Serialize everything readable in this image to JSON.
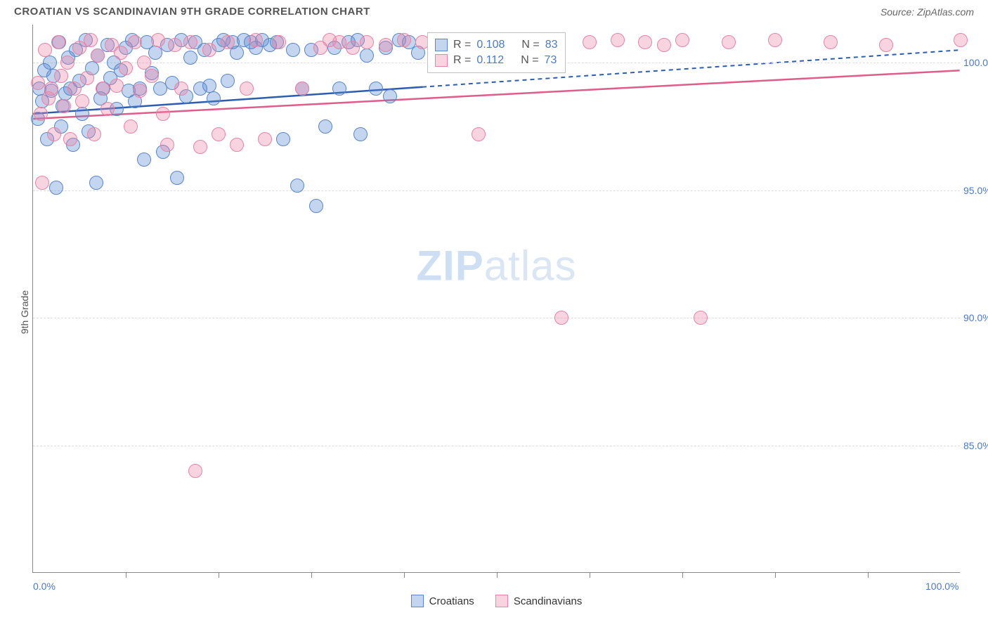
{
  "header": {
    "title": "CROATIAN VS SCANDINAVIAN 9TH GRADE CORRELATION CHART",
    "source": "Source: ZipAtlas.com"
  },
  "chart": {
    "type": "scatter",
    "ylabel": "9th Grade",
    "watermark_a": "ZIP",
    "watermark_b": "atlas",
    "background_color": "#ffffff",
    "grid_color": "#dddddd",
    "axis_color": "#888888",
    "xlim": [
      0,
      100
    ],
    "ylim": [
      80,
      101.5
    ],
    "yticks": [
      {
        "v": 100,
        "label": "100.0%"
      },
      {
        "v": 95,
        "label": "95.0%"
      },
      {
        "v": 90,
        "label": "90.0%"
      },
      {
        "v": 85,
        "label": "85.0%"
      }
    ],
    "xticks_minor": [
      10,
      20,
      30,
      40,
      50,
      60,
      70,
      80,
      90
    ],
    "xtick_labels": [
      {
        "v": 0,
        "label": "0.0%"
      },
      {
        "v": 100,
        "label": "100.0%"
      }
    ],
    "series": [
      {
        "name": "Croatians",
        "color_fill": "rgba(85,135,210,0.35)",
        "color_stroke": "#5a87c9",
        "trend_color": "#2b5db0",
        "marker_radius": 10,
        "r_value": "0.108",
        "n_value": "83",
        "trend": {
          "y_at_x0": 98.0,
          "y_at_x100": 100.5,
          "solid_until_x": 42
        },
        "points": [
          [
            0.5,
            97.8
          ],
          [
            0.7,
            99.0
          ],
          [
            1.0,
            98.5
          ],
          [
            1.2,
            99.7
          ],
          [
            1.5,
            97.0
          ],
          [
            1.8,
            100.0
          ],
          [
            2.0,
            98.9
          ],
          [
            2.2,
            99.5
          ],
          [
            2.5,
            95.1
          ],
          [
            2.8,
            100.8
          ],
          [
            3.0,
            97.5
          ],
          [
            3.2,
            98.3
          ],
          [
            3.5,
            98.8
          ],
          [
            3.8,
            100.2
          ],
          [
            4.0,
            99.0
          ],
          [
            4.3,
            96.8
          ],
          [
            4.6,
            100.5
          ],
          [
            5.0,
            99.3
          ],
          [
            5.3,
            98.0
          ],
          [
            5.7,
            100.9
          ],
          [
            6.0,
            97.3
          ],
          [
            6.4,
            99.8
          ],
          [
            6.8,
            95.3
          ],
          [
            7.0,
            100.3
          ],
          [
            7.3,
            98.6
          ],
          [
            7.6,
            99.0
          ],
          [
            8.0,
            100.7
          ],
          [
            8.3,
            99.4
          ],
          [
            8.7,
            100.0
          ],
          [
            9.0,
            98.2
          ],
          [
            9.5,
            99.7
          ],
          [
            10.0,
            100.6
          ],
          [
            10.3,
            98.9
          ],
          [
            10.7,
            100.9
          ],
          [
            11.0,
            98.5
          ],
          [
            11.5,
            99.0
          ],
          [
            12.0,
            96.2
          ],
          [
            12.3,
            100.8
          ],
          [
            12.8,
            99.6
          ],
          [
            13.2,
            100.4
          ],
          [
            13.7,
            99.0
          ],
          [
            14.0,
            96.5
          ],
          [
            14.5,
            100.7
          ],
          [
            15.0,
            99.2
          ],
          [
            15.5,
            95.5
          ],
          [
            16.0,
            100.9
          ],
          [
            16.5,
            98.7
          ],
          [
            17.0,
            100.2
          ],
          [
            17.5,
            100.8
          ],
          [
            18.0,
            99.0
          ],
          [
            18.5,
            100.5
          ],
          [
            19.0,
            99.1
          ],
          [
            19.5,
            98.6
          ],
          [
            20.0,
            100.7
          ],
          [
            20.5,
            100.9
          ],
          [
            21.0,
            99.3
          ],
          [
            21.5,
            100.8
          ],
          [
            22.0,
            100.4
          ],
          [
            22.7,
            100.9
          ],
          [
            23.5,
            100.8
          ],
          [
            24.0,
            100.6
          ],
          [
            24.7,
            100.9
          ],
          [
            25.5,
            100.7
          ],
          [
            26.3,
            100.8
          ],
          [
            27.0,
            97.0
          ],
          [
            28.0,
            100.5
          ],
          [
            28.5,
            95.2
          ],
          [
            29.0,
            99.0
          ],
          [
            30.0,
            100.5
          ],
          [
            30.5,
            94.4
          ],
          [
            31.5,
            97.5
          ],
          [
            32.5,
            100.6
          ],
          [
            33.0,
            99.0
          ],
          [
            34.0,
            100.8
          ],
          [
            35.0,
            100.9
          ],
          [
            35.3,
            97.2
          ],
          [
            36.0,
            100.3
          ],
          [
            37.0,
            99.0
          ],
          [
            38.0,
            100.6
          ],
          [
            38.5,
            98.7
          ],
          [
            39.5,
            100.9
          ],
          [
            40.5,
            100.8
          ],
          [
            41.5,
            100.4
          ]
        ]
      },
      {
        "name": "Scandinavians",
        "color_fill": "rgba(235,130,165,0.35)",
        "color_stroke": "#e884a6",
        "trend_color": "#e05c8a",
        "marker_radius": 10,
        "r_value": "0.112",
        "n_value": "73",
        "trend": {
          "y_at_x0": 97.8,
          "y_at_x100": 99.7,
          "solid_until_x": 100
        },
        "points": [
          [
            0.5,
            99.2
          ],
          [
            0.8,
            98.0
          ],
          [
            1.0,
            95.3
          ],
          [
            1.3,
            100.5
          ],
          [
            1.7,
            98.6
          ],
          [
            2.0,
            99.0
          ],
          [
            2.3,
            97.2
          ],
          [
            2.7,
            100.8
          ],
          [
            3.0,
            99.5
          ],
          [
            3.3,
            98.3
          ],
          [
            3.7,
            100.0
          ],
          [
            4.0,
            97.0
          ],
          [
            4.5,
            99.0
          ],
          [
            5.0,
            100.6
          ],
          [
            5.3,
            98.5
          ],
          [
            5.8,
            99.4
          ],
          [
            6.2,
            100.9
          ],
          [
            6.6,
            97.2
          ],
          [
            7.0,
            100.3
          ],
          [
            7.5,
            99.0
          ],
          [
            8.0,
            98.2
          ],
          [
            8.5,
            100.7
          ],
          [
            9.0,
            99.1
          ],
          [
            9.5,
            100.4
          ],
          [
            10.0,
            99.8
          ],
          [
            10.5,
            97.5
          ],
          [
            11.0,
            100.8
          ],
          [
            11.5,
            98.9
          ],
          [
            12.0,
            100.0
          ],
          [
            12.8,
            99.5
          ],
          [
            13.5,
            100.9
          ],
          [
            14.0,
            98.0
          ],
          [
            14.5,
            96.8
          ],
          [
            15.3,
            100.7
          ],
          [
            16.0,
            99.0
          ],
          [
            17.0,
            100.8
          ],
          [
            17.5,
            84.0
          ],
          [
            18.0,
            96.7
          ],
          [
            19.0,
            100.5
          ],
          [
            20.0,
            97.2
          ],
          [
            21.0,
            100.8
          ],
          [
            22.0,
            96.8
          ],
          [
            23.0,
            99.0
          ],
          [
            24.0,
            100.9
          ],
          [
            25.0,
            97.0
          ],
          [
            26.5,
            100.8
          ],
          [
            29.0,
            99.0
          ],
          [
            31.0,
            100.6
          ],
          [
            32.0,
            100.9
          ],
          [
            33.0,
            100.8
          ],
          [
            34.5,
            100.6
          ],
          [
            36.0,
            100.8
          ],
          [
            38.0,
            100.7
          ],
          [
            40.0,
            100.9
          ],
          [
            42.0,
            100.8
          ],
          [
            44.0,
            100.6
          ],
          [
            46.0,
            100.9
          ],
          [
            48.0,
            97.2
          ],
          [
            50.0,
            100.8
          ],
          [
            52.0,
            100.9
          ],
          [
            54.0,
            100.7
          ],
          [
            57.0,
            90.0
          ],
          [
            60.0,
            100.8
          ],
          [
            63.0,
            100.9
          ],
          [
            66.0,
            100.8
          ],
          [
            68.0,
            100.7
          ],
          [
            70.0,
            100.9
          ],
          [
            72.0,
            90.0
          ],
          [
            75.0,
            100.8
          ],
          [
            80.0,
            100.9
          ],
          [
            86.0,
            100.8
          ],
          [
            92.0,
            100.7
          ],
          [
            100.0,
            100.9
          ]
        ]
      }
    ],
    "stats_box": {
      "left_pct": 42.5,
      "top_y": 101.2
    },
    "legend": {
      "items": [
        {
          "label": "Croatians",
          "fill": "rgba(85,135,210,0.35)",
          "stroke": "#5a87c9"
        },
        {
          "label": "Scandinavians",
          "fill": "rgba(235,130,165,0.35)",
          "stroke": "#e884a6"
        }
      ]
    }
  }
}
